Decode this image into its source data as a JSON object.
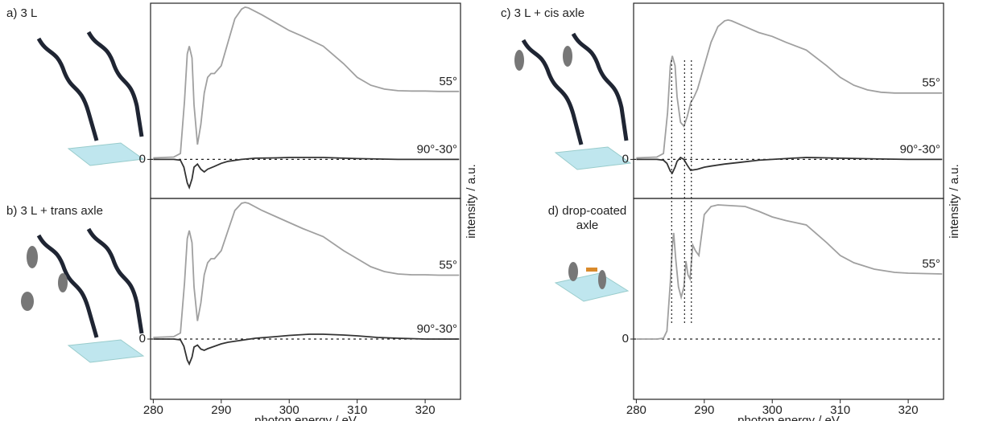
{
  "chart_data": [
    {
      "type": "line",
      "title": "a) 3 L",
      "xlim": [
        279.6,
        325.2
      ],
      "ylim": [
        -1,
        4
      ],
      "yticks": [
        0
      ],
      "grid": true,
      "series": [
        {
          "name": "55°",
          "color": "#a0a0a0",
          "x": [
            280,
            283,
            284,
            284.6,
            285,
            285.3,
            285.7,
            286,
            286.5,
            287,
            287.5,
            288,
            288.5,
            289,
            290,
            291,
            292,
            293,
            293.5,
            294,
            296,
            298,
            300,
            302,
            305,
            308,
            310,
            312,
            314,
            316,
            318,
            320,
            322,
            325
          ],
          "values": [
            0.04,
            0.06,
            0.15,
            1.5,
            2.7,
            2.9,
            2.6,
            1.4,
            0.38,
            0.9,
            1.7,
            2.1,
            2.2,
            2.2,
            2.4,
            3.0,
            3.6,
            3.85,
            3.9,
            3.88,
            3.7,
            3.5,
            3.3,
            3.15,
            2.9,
            2.45,
            2.1,
            1.9,
            1.8,
            1.76,
            1.75,
            1.75,
            1.74,
            1.74
          ]
        },
        {
          "name": "90°-30°",
          "color": "#333333",
          "x": [
            280,
            283,
            284,
            284.5,
            285,
            285.3,
            285.7,
            286,
            286.5,
            287,
            287.5,
            288,
            289,
            290,
            291,
            293,
            295,
            298,
            300,
            303,
            305,
            308,
            310,
            313,
            316,
            320,
            325
          ],
          "values": [
            0,
            0,
            -0.02,
            -0.2,
            -0.6,
            -0.72,
            -0.5,
            -0.2,
            -0.12,
            -0.25,
            -0.32,
            -0.25,
            -0.18,
            -0.1,
            -0.05,
            0,
            0.03,
            0.04,
            0.05,
            0.05,
            0.05,
            0.03,
            0.02,
            0.01,
            0,
            0,
            0
          ]
        }
      ]
    },
    {
      "type": "line",
      "title": "b) 3 L + trans axle",
      "xlabel": "photon energy / eV",
      "ylabel": "intensity / a.u.",
      "xlim": [
        279.6,
        325.2
      ],
      "xticks": [
        280,
        290,
        300,
        310,
        320
      ],
      "ylim": [
        -1.5,
        3.5
      ],
      "yticks": [
        0
      ],
      "grid": true,
      "series": [
        {
          "name": "55°",
          "color": "#a0a0a0",
          "x": [
            280,
            283,
            284,
            284.6,
            285,
            285.3,
            285.7,
            286,
            286.5,
            287,
            287.5,
            288,
            288.5,
            289,
            290,
            291,
            292,
            293,
            293.5,
            294,
            296,
            298,
            300,
            302,
            305,
            308,
            310,
            312,
            314,
            316,
            318,
            320,
            322,
            325
          ],
          "values": [
            0.04,
            0.06,
            0.15,
            1.4,
            2.5,
            2.7,
            2.4,
            1.3,
            0.45,
            0.9,
            1.6,
            1.9,
            2.0,
            2.0,
            2.2,
            2.7,
            3.2,
            3.38,
            3.4,
            3.38,
            3.2,
            3.05,
            2.9,
            2.75,
            2.55,
            2.2,
            2.0,
            1.8,
            1.68,
            1.62,
            1.6,
            1.6,
            1.59,
            1.59
          ]
        },
        {
          "name": "90°-30°",
          "color": "#333333",
          "x": [
            280,
            283,
            284,
            284.5,
            285,
            285.3,
            285.7,
            286,
            286.5,
            287,
            287.5,
            288,
            289,
            290,
            291,
            293,
            295,
            298,
            300,
            303,
            305,
            308,
            310,
            313,
            316,
            320,
            325
          ],
          "values": [
            0,
            0,
            -0.02,
            -0.18,
            -0.52,
            -0.62,
            -0.45,
            -0.2,
            -0.15,
            -0.25,
            -0.28,
            -0.24,
            -0.18,
            -0.12,
            -0.08,
            -0.03,
            0.02,
            0.06,
            0.09,
            0.12,
            0.12,
            0.1,
            0.08,
            0.04,
            0.02,
            0,
            0
          ]
        }
      ]
    },
    {
      "type": "line",
      "title": "c) 3 L + cis axle",
      "xlim": [
        279.6,
        325.2
      ],
      "ylim": [
        -1,
        4
      ],
      "yticks": [
        0
      ],
      "grid": true,
      "vlines": [
        285.2,
        287.1,
        288.1
      ],
      "series": [
        {
          "name": "55°",
          "color": "#a0a0a0",
          "x": [
            280,
            283,
            284,
            284.6,
            285,
            285.3,
            285.7,
            286,
            286.5,
            287,
            287.5,
            288,
            288.5,
            289,
            290,
            291,
            292,
            293,
            293.5,
            294,
            296,
            298,
            300,
            302,
            305,
            308,
            310,
            312,
            314,
            316,
            318,
            320,
            322,
            325
          ],
          "values": [
            0.04,
            0.06,
            0.15,
            1.2,
            2.4,
            2.65,
            2.4,
            1.6,
            0.95,
            0.85,
            1.1,
            1.45,
            1.6,
            1.8,
            2.4,
            3.0,
            3.4,
            3.55,
            3.57,
            3.55,
            3.4,
            3.25,
            3.15,
            3.0,
            2.8,
            2.4,
            2.1,
            1.9,
            1.78,
            1.72,
            1.7,
            1.7,
            1.7,
            1.7
          ]
        },
        {
          "name": "90°-30°",
          "color": "#333333",
          "x": [
            280,
            283,
            284,
            284.5,
            285,
            285.3,
            285.7,
            286,
            286.5,
            287,
            287.5,
            288,
            289,
            290,
            291,
            293,
            295,
            298,
            300,
            303,
            305,
            308,
            310,
            313,
            316,
            320,
            325
          ],
          "values": [
            0,
            0,
            -0.02,
            -0.1,
            -0.3,
            -0.35,
            -0.2,
            -0.05,
            0.05,
            0.0,
            -0.15,
            -0.28,
            -0.25,
            -0.2,
            -0.17,
            -0.12,
            -0.08,
            -0.02,
            0.0,
            0.03,
            0.05,
            0.04,
            0.03,
            0.02,
            0.01,
            0,
            0
          ]
        }
      ]
    },
    {
      "type": "line",
      "title": "d) drop-coated axle",
      "xlabel": "photon energy / eV",
      "ylabel": "intensity / a.u.",
      "xlim": [
        279.6,
        325.2
      ],
      "xticks": [
        280,
        290,
        300,
        310,
        320
      ],
      "ylim": [
        -1.5,
        3.5
      ],
      "yticks": [
        0
      ],
      "grid": true,
      "series": [
        {
          "name": "55°",
          "color": "#a0a0a0",
          "x": [
            280,
            283,
            284,
            284.5,
            285,
            285.3,
            285.5,
            285.8,
            286.2,
            286.6,
            287,
            287.3,
            287.6,
            287.9,
            288.3,
            288.7,
            289.2,
            290,
            291,
            292,
            294,
            296,
            298,
            300,
            302,
            305,
            308,
            310,
            312,
            315,
            318,
            320,
            325
          ],
          "values": [
            0,
            0,
            0.02,
            0.2,
            1.4,
            2.3,
            2.64,
            2.0,
            1.3,
            1.04,
            1.3,
            1.94,
            1.6,
            1.5,
            2.34,
            2.2,
            2.08,
            3.1,
            3.3,
            3.34,
            3.32,
            3.3,
            3.18,
            3.04,
            2.95,
            2.84,
            2.4,
            2.08,
            1.9,
            1.74,
            1.66,
            1.64,
            1.62
          ]
        }
      ]
    }
  ]
}
